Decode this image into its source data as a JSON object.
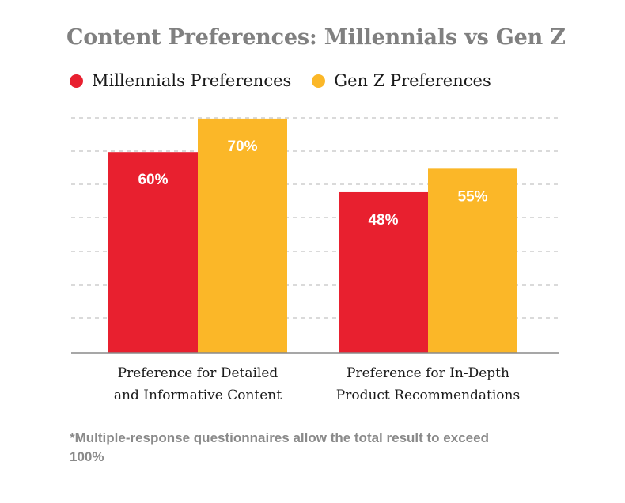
{
  "title": "Content Preferences: Millennials vs Gen Z",
  "footnote": "*Multiple-response questionnaires allow the total result to exceed 100%",
  "colors": {
    "millennials": "#e8202f",
    "genz": "#fbb728",
    "grid": "#c4c4c4",
    "axis": "#8a8a8a"
  },
  "chart_data": {
    "type": "bar",
    "categories": [
      [
        "Preference for Detailed",
        "and Informative Content"
      ],
      [
        "Preference for In-Depth",
        "Product Recommendations"
      ]
    ],
    "series": [
      {
        "name": "Millennials Preferences",
        "values": [
          60,
          48
        ],
        "labels": [
          "60%",
          "48%"
        ]
      },
      {
        "name": "Gen Z Preferences",
        "values": [
          70,
          55
        ],
        "labels": [
          "70%",
          "55%"
        ]
      }
    ],
    "ylim": [
      0,
      70
    ],
    "grid": true,
    "legend": "top-left"
  }
}
